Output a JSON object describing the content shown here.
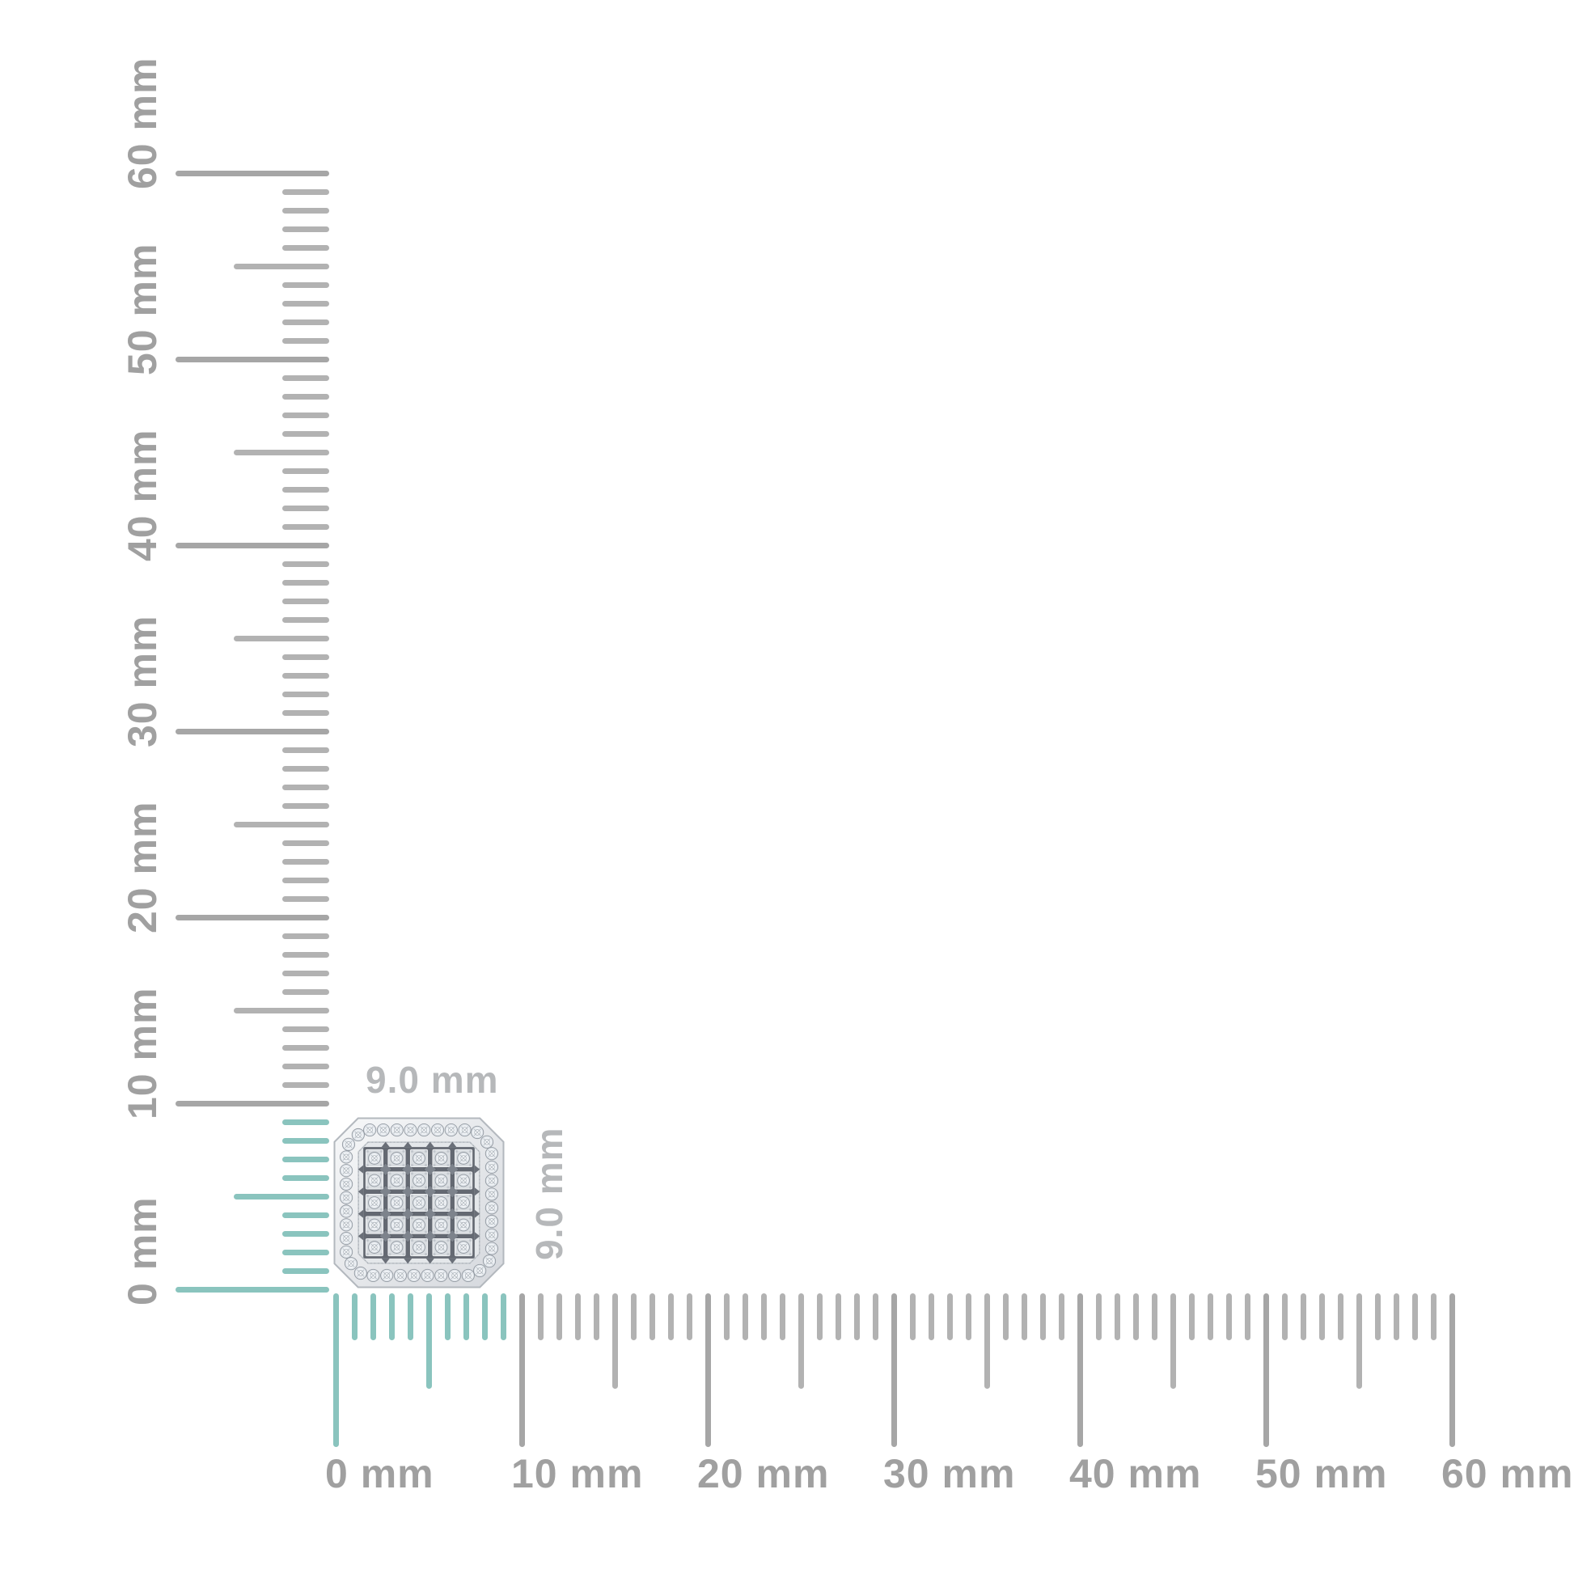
{
  "item": {
    "width_label": "9.0 mm",
    "height_label": "9.0 mm",
    "shape": "cut-corner square diamond cluster",
    "grid_rows": 5,
    "grid_cols": 5
  },
  "rulers": {
    "unit": "mm",
    "horizontal": {
      "min": 0,
      "max": 60,
      "major_step": 10,
      "medium_step": 5,
      "minor_step": 1,
      "highlight_from": 0,
      "highlight_to": 9,
      "labels": [
        "0 mm",
        "10 mm",
        "20 mm",
        "30 mm",
        "40 mm",
        "50 mm",
        "60 mm"
      ]
    },
    "vertical": {
      "min": 0,
      "max": 60,
      "major_step": 10,
      "medium_step": 5,
      "minor_step": 1,
      "highlight_from": 0,
      "highlight_to": 9,
      "labels": [
        "0 mm",
        "10 mm",
        "20 mm",
        "30 mm",
        "40 mm",
        "50 mm",
        "60 mm"
      ]
    }
  },
  "colors": {
    "background": "#ffffff",
    "tick_minor_gray": "#b2b2b2",
    "tick_major_gray": "#a6a6a6",
    "tick_highlight": "#8ac4be",
    "ruler_label": "#a0a0a0",
    "dimension_label": "#b6b8ba",
    "metal_light": "#f7f8f9",
    "metal_dark": "#d5d8dd",
    "plate": "#e4e7ea",
    "channel_dark": "#646972",
    "diamond_white": "#f8fafc"
  }
}
